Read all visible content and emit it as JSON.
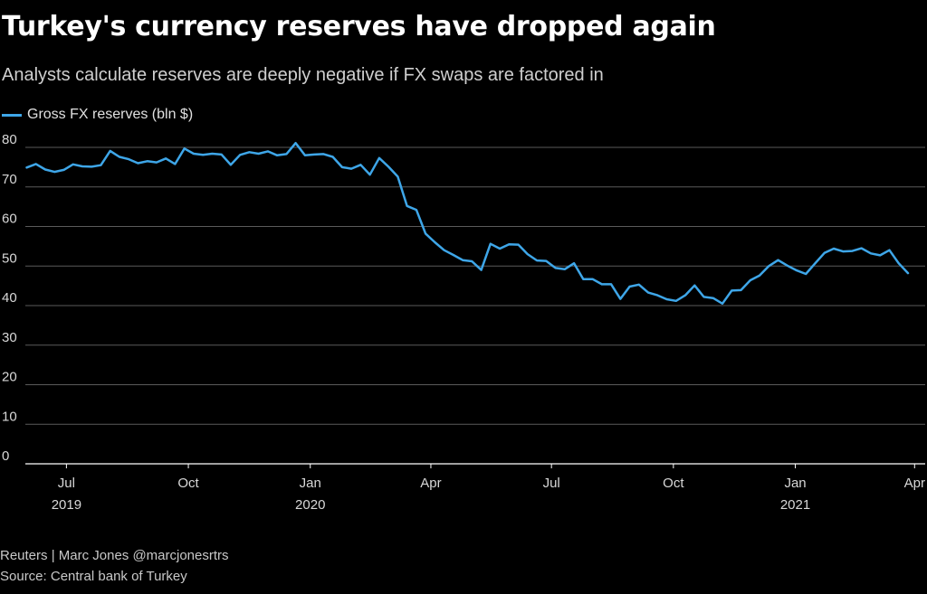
{
  "title": "Turkey's currency reserves have dropped again",
  "subtitle": "Analysts calculate reserves are deeply negative if FX swaps are factored in",
  "footer": {
    "credit": "Reuters | Marc Jones @marcjonesrtrs",
    "source": "Source: Central bank of Turkey"
  },
  "colors": {
    "line": "#3ea6e8",
    "grid": "#5a5a5a",
    "axis": "#ffffff",
    "text": "#d8d8d8",
    "background": "#000000"
  },
  "chart_data": {
    "type": "line",
    "title": "Turkey's currency reserves have dropped again",
    "xlabel": "",
    "ylabel": "",
    "ylim": [
      0,
      80
    ],
    "y_ticks": [
      "0",
      "10",
      "20",
      "30",
      "40",
      "50",
      "60",
      "70",
      "80"
    ],
    "grid": true,
    "legend_position": "top-left",
    "x_range": [
      "2019-05-31",
      "2021-04-09"
    ],
    "x_ticks": [
      {
        "date": "2019-07-01",
        "label": "Jul",
        "year": "2019"
      },
      {
        "date": "2019-10-01",
        "label": "Oct",
        "year": ""
      },
      {
        "date": "2020-01-01",
        "label": "Jan",
        "year": "2020"
      },
      {
        "date": "2020-04-01",
        "label": "Apr",
        "year": ""
      },
      {
        "date": "2020-07-01",
        "label": "Jul",
        "year": ""
      },
      {
        "date": "2020-10-01",
        "label": "Oct",
        "year": ""
      },
      {
        "date": "2021-01-01",
        "label": "Jan",
        "year": "2021"
      },
      {
        "date": "2021-04-01",
        "label": "Apr",
        "year": ""
      }
    ],
    "series": [
      {
        "name": "Gross FX reserves (bln $)",
        "points": [
          [
            "2019-06-01",
            74.9
          ],
          [
            "2019-06-08",
            75.8
          ],
          [
            "2019-06-15",
            74.4
          ],
          [
            "2019-06-22",
            73.8
          ],
          [
            "2019-06-29",
            74.3
          ],
          [
            "2019-07-06",
            75.7
          ],
          [
            "2019-07-13",
            75.2
          ],
          [
            "2019-07-20",
            75.1
          ],
          [
            "2019-07-27",
            75.5
          ],
          [
            "2019-08-03",
            79.1
          ],
          [
            "2019-08-10",
            77.6
          ],
          [
            "2019-08-17",
            77.0
          ],
          [
            "2019-08-24",
            76.0
          ],
          [
            "2019-08-31",
            76.5
          ],
          [
            "2019-09-07",
            76.2
          ],
          [
            "2019-09-14",
            77.2
          ],
          [
            "2019-09-21",
            75.8
          ],
          [
            "2019-09-28",
            79.7
          ],
          [
            "2019-10-05",
            78.4
          ],
          [
            "2019-10-12",
            78.1
          ],
          [
            "2019-10-19",
            78.4
          ],
          [
            "2019-10-26",
            78.2
          ],
          [
            "2019-11-02",
            75.6
          ],
          [
            "2019-11-09",
            78.1
          ],
          [
            "2019-11-16",
            78.8
          ],
          [
            "2019-11-23",
            78.4
          ],
          [
            "2019-11-30",
            79.0
          ],
          [
            "2019-12-07",
            78.0
          ],
          [
            "2019-12-14",
            78.3
          ],
          [
            "2019-12-21",
            81.1
          ],
          [
            "2019-12-28",
            78.0
          ],
          [
            "2020-01-04",
            78.2
          ],
          [
            "2020-01-11",
            78.3
          ],
          [
            "2020-01-18",
            77.6
          ],
          [
            "2020-01-25",
            75.0
          ],
          [
            "2020-02-01",
            74.6
          ],
          [
            "2020-02-08",
            75.6
          ],
          [
            "2020-02-15",
            73.1
          ],
          [
            "2020-02-22",
            77.3
          ],
          [
            "2020-02-29",
            75.1
          ],
          [
            "2020-03-07",
            72.6
          ],
          [
            "2020-03-14",
            65.2
          ],
          [
            "2020-03-21",
            64.2
          ],
          [
            "2020-03-28",
            58.2
          ],
          [
            "2020-04-04",
            56.0
          ],
          [
            "2020-04-11",
            54.0
          ],
          [
            "2020-04-18",
            52.8
          ],
          [
            "2020-04-25",
            51.5
          ],
          [
            "2020-05-02",
            51.2
          ],
          [
            "2020-05-09",
            49.0
          ],
          [
            "2020-05-16",
            55.6
          ],
          [
            "2020-05-23",
            54.4
          ],
          [
            "2020-05-30",
            55.5
          ],
          [
            "2020-06-06",
            55.4
          ],
          [
            "2020-06-13",
            53.0
          ],
          [
            "2020-06-20",
            51.4
          ],
          [
            "2020-06-27",
            51.3
          ],
          [
            "2020-07-04",
            49.5
          ],
          [
            "2020-07-11",
            49.2
          ],
          [
            "2020-07-18",
            50.7
          ],
          [
            "2020-07-25",
            46.7
          ],
          [
            "2020-08-01",
            46.7
          ],
          [
            "2020-08-08",
            45.4
          ],
          [
            "2020-08-15",
            45.4
          ],
          [
            "2020-08-22",
            41.7
          ],
          [
            "2020-08-29",
            44.8
          ],
          [
            "2020-09-05",
            45.3
          ],
          [
            "2020-09-12",
            43.3
          ],
          [
            "2020-09-19",
            42.6
          ],
          [
            "2020-09-26",
            41.6
          ],
          [
            "2020-10-03",
            41.2
          ],
          [
            "2020-10-10",
            42.6
          ],
          [
            "2020-10-17",
            45.1
          ],
          [
            "2020-10-24",
            42.2
          ],
          [
            "2020-10-31",
            41.9
          ],
          [
            "2020-11-07",
            40.5
          ],
          [
            "2020-11-14",
            43.8
          ],
          [
            "2020-11-21",
            43.9
          ],
          [
            "2020-11-28",
            46.4
          ],
          [
            "2020-12-05",
            47.6
          ],
          [
            "2020-12-12",
            50.0
          ],
          [
            "2020-12-19",
            51.5
          ],
          [
            "2020-12-26",
            50.1
          ],
          [
            "2021-01-02",
            48.9
          ],
          [
            "2021-01-09",
            48.0
          ],
          [
            "2021-01-16",
            50.7
          ],
          [
            "2021-01-23",
            53.3
          ],
          [
            "2021-01-30",
            54.4
          ],
          [
            "2021-02-06",
            53.7
          ],
          [
            "2021-02-13",
            53.8
          ],
          [
            "2021-02-20",
            54.5
          ],
          [
            "2021-02-27",
            53.2
          ],
          [
            "2021-03-06",
            52.7
          ],
          [
            "2021-03-13",
            54.0
          ],
          [
            "2021-03-20",
            50.7
          ],
          [
            "2021-03-27",
            48.2
          ]
        ]
      }
    ]
  }
}
